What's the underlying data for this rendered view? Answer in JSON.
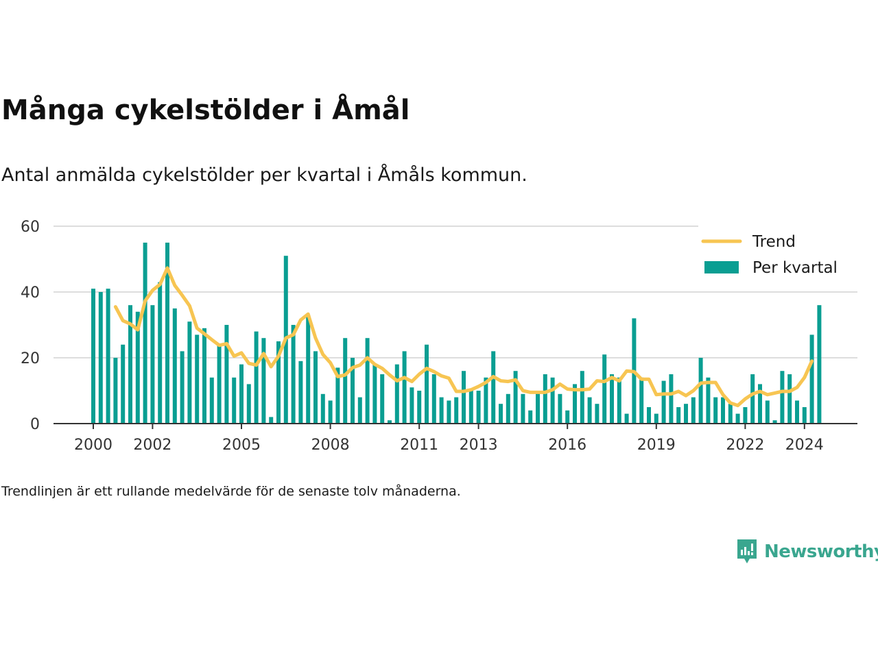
{
  "header": {
    "title": "Många cykelstölder i Åmål",
    "subtitle": "Antal anmälda cykelstölder per kvartal i Åmåls kommun."
  },
  "footer": {
    "note": "Trendlinjen är ett rullande medelvärde för de senaste tolv månaderna.",
    "brand": "Newsworthy"
  },
  "colors": {
    "bars": "#0a9e92",
    "trend": "#f7c552",
    "grid": "#dddddd",
    "axis": "#333333",
    "brand": "#3aa68f"
  },
  "chart_data": {
    "type": "bar",
    "x_start": "2000 Q1",
    "x_ticks": [
      "2000",
      "2002",
      "2005",
      "2008",
      "2011",
      "2013",
      "2016",
      "2019",
      "2022",
      "2024"
    ],
    "y_ticks": [
      "0",
      "20",
      "40",
      "60"
    ],
    "ylim": [
      0,
      60
    ],
    "grid": true,
    "legend_position": "top-right",
    "series": [
      {
        "name": "Per kvartal",
        "type": "bar",
        "values": [
          41,
          40,
          41,
          20,
          24,
          36,
          34,
          55,
          36,
          43,
          55,
          35,
          22,
          31,
          27,
          29,
          14,
          24,
          30,
          14,
          18,
          12,
          28,
          26,
          2,
          25,
          51,
          30,
          19,
          33,
          22,
          9,
          7,
          17,
          26,
          20,
          8,
          26,
          18,
          15,
          1,
          18,
          22,
          11,
          10,
          24,
          15,
          8,
          7,
          8,
          16,
          10,
          10,
          14,
          22,
          6,
          9,
          16,
          9,
          4,
          10,
          15,
          14,
          9,
          4,
          12,
          16,
          8,
          6,
          21,
          15,
          14,
          3,
          32,
          14,
          5,
          3,
          13,
          15,
          5,
          6,
          8,
          20,
          14,
          8,
          8,
          6,
          3,
          5,
          15,
          12,
          7,
          1,
          16,
          15,
          7,
          5,
          27,
          36
        ]
      },
      {
        "name": "Trend",
        "type": "line",
        "start_index": 3,
        "values": [
          35.5,
          31.3,
          30.3,
          28.5,
          37.3,
          40.5,
          42.3,
          47.3,
          42.0,
          39.0,
          35.8,
          29.0,
          27.3,
          25.5,
          23.8,
          24.3,
          20.5,
          21.5,
          18.3,
          17.8,
          21.3,
          17.3,
          20.5,
          26.0,
          27.0,
          31.5,
          33.3,
          26.0,
          21.0,
          18.5,
          14.3,
          14.8,
          17.0,
          17.8,
          20.0,
          18.0,
          16.8,
          14.8,
          13.0,
          14.0,
          12.8,
          15.0,
          16.8,
          15.8,
          14.5,
          13.8,
          9.8,
          9.8,
          10.3,
          11.3,
          12.5,
          14.3,
          13.0,
          12.8,
          13.3,
          10.0,
          9.5,
          9.5,
          9.5,
          10.3,
          12.0,
          10.5,
          10.3,
          10.3,
          10.5,
          13.0,
          12.8,
          14.0,
          13.0,
          16.0,
          15.8,
          13.5,
          13.5,
          8.8,
          9.0,
          9.0,
          9.8,
          8.5,
          10.0,
          12.3,
          12.5,
          12.5,
          8.8,
          6.3,
          5.5,
          7.5,
          9.0,
          9.8,
          8.8,
          9.3,
          9.8,
          9.8,
          11.0,
          14.0,
          19.0
        ]
      }
    ]
  }
}
